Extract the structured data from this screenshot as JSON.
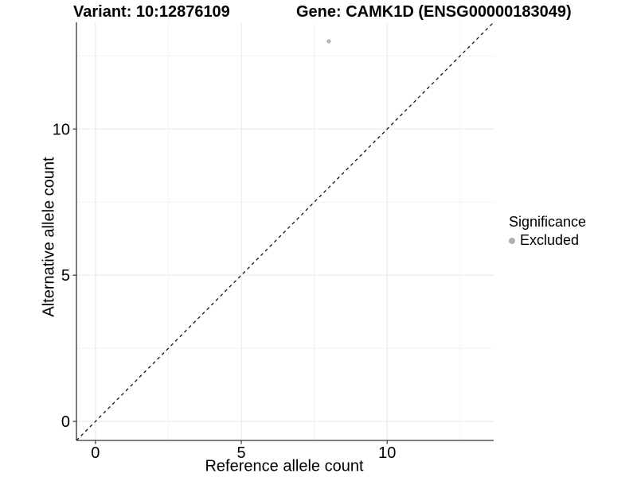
{
  "chart_data": {
    "type": "scatter",
    "title_left": "Variant: 10:12876109",
    "title_right": "Gene: CAMK1D (ENSG00000183049)",
    "xlabel": "Reference allele count",
    "ylabel": "Alternative allele count",
    "xlim": [
      -0.65,
      13.65
    ],
    "ylim": [
      -0.65,
      13.65
    ],
    "x_ticks": [
      0,
      5,
      10
    ],
    "y_ticks": [
      0,
      5,
      10
    ],
    "x_minor": [
      2.5,
      7.5,
      12.5
    ],
    "y_minor": [
      2.5,
      7.5,
      12.5
    ],
    "grid": true,
    "points": [
      {
        "x": 8,
        "y": 13,
        "significance": "Excluded"
      }
    ],
    "identity_line": {
      "style": "dashed",
      "from": [
        -0.65,
        -0.65
      ],
      "to": [
        13.65,
        13.65
      ]
    },
    "legend": {
      "title": "Significance",
      "position": "right",
      "items": [
        {
          "label": "Excluded",
          "color": "#b0b0b0"
        }
      ]
    }
  },
  "colors": {
    "point": "#b4b4b4",
    "legend_dot": "#b0b0b0",
    "axis_line": "#333333",
    "tick_mark": "#333333",
    "grid_major": "#e7e7e7",
    "grid_minor": "#f2f2f2",
    "identity_line": "#000000",
    "text": "#000000"
  }
}
